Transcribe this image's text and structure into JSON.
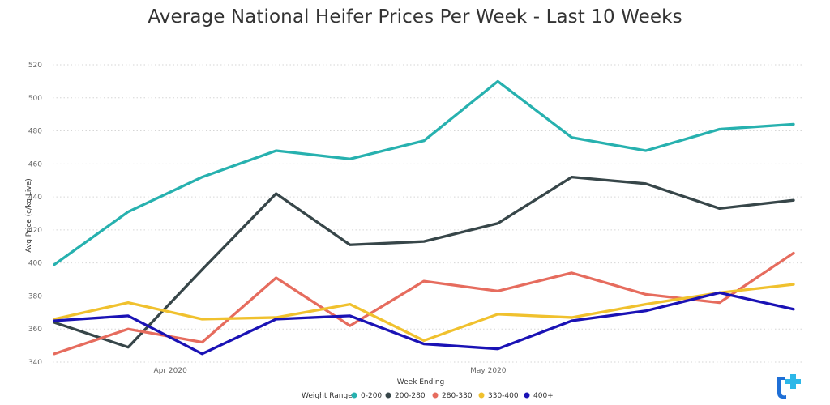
{
  "chart_data": {
    "type": "line",
    "title": "Average National Heifer Prices Per Week - Last 10 Weeks",
    "xlabel": "Week Ending",
    "ylabel": "Avg Price (c/kg Live)",
    "x_tick_labels": [
      "Apr 2020",
      "May 2020"
    ],
    "ylim": [
      340,
      520
    ],
    "yticks": [
      340,
      360,
      380,
      400,
      420,
      440,
      460,
      480,
      500,
      520
    ],
    "grid": true,
    "legend": {
      "title": "Weight Range",
      "placement": "bottom-center"
    },
    "x_points": 11,
    "series": [
      {
        "name": "0-200",
        "color": "#27B1AF",
        "values": [
          399,
          431,
          452,
          468,
          463,
          474,
          510,
          476,
          468,
          481,
          484
        ]
      },
      {
        "name": "200-280",
        "color": "#374649",
        "values": [
          364,
          349,
          396,
          442,
          411,
          413,
          424,
          452,
          448,
          433,
          438
        ]
      },
      {
        "name": "280-330",
        "color": "#E66C5E",
        "values": [
          345,
          360,
          352,
          391,
          362,
          389,
          383,
          394,
          381,
          376,
          406
        ]
      },
      {
        "name": "330-400",
        "color": "#F0C12E",
        "values": [
          366,
          376,
          366,
          367,
          375,
          353,
          369,
          367,
          375,
          382,
          387
        ]
      },
      {
        "name": "400+",
        "color": "#1A12B5",
        "values": [
          365,
          368,
          345,
          366,
          368,
          351,
          348,
          365,
          371,
          382,
          372
        ]
      }
    ]
  },
  "logo": {
    "name": "brand-logo",
    "colors": [
      "#1F6FD6",
      "#2DB7E8"
    ]
  }
}
